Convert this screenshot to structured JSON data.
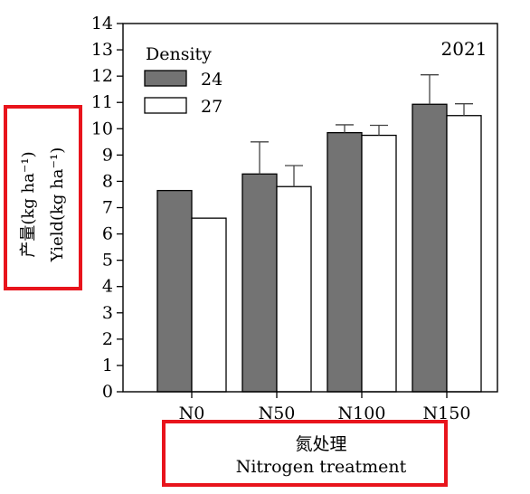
{
  "chart_data": {
    "type": "bar",
    "categories": [
      "N0",
      "N50",
      "N100",
      "N150"
    ],
    "series": [
      {
        "name": "24",
        "color": "#737373",
        "values": [
          7.65,
          8.28,
          9.85,
          10.93
        ],
        "errors": [
          0,
          1.22,
          0.3,
          1.12
        ]
      },
      {
        "name": "27",
        "color": "#ffffff",
        "values": [
          6.6,
          7.8,
          9.75,
          10.5
        ],
        "errors": [
          0,
          0.8,
          0.38,
          0.45
        ]
      }
    ],
    "title": "2021",
    "legend_title": "Density",
    "legend_placement": "top-left",
    "xlabel_cn": "氮处理",
    "xlabel": "Nitrogen treatment",
    "ylabel_cn": "产量(kg ha⁻¹)",
    "ylabel": "Yield(kg ha⁻¹)",
    "ylim": [
      0,
      14
    ],
    "yticks": [
      0,
      1,
      2,
      3,
      4,
      5,
      6,
      7,
      8,
      9,
      10,
      11,
      12,
      13,
      14
    ],
    "grid": false,
    "highlight_color": "#e8141c"
  }
}
